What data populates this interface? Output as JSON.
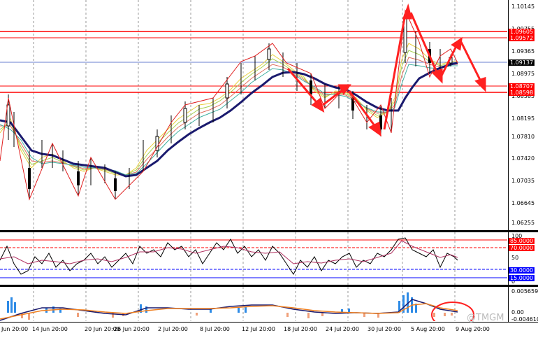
{
  "main_axis": {
    "labels": [
      "1.10145",
      "1.09755",
      "1.09365",
      "1.08975",
      "1.08585",
      "1.08195",
      "1.07810",
      "1.07420",
      "1.07035",
      "1.06645",
      "1.06255"
    ],
    "price_tags": [
      {
        "text": "1.09605",
        "color": "#ff0000",
        "fg": "#ffffff"
      },
      {
        "text": "1.09572",
        "color": "#ff0000",
        "fg": "#ffffff"
      },
      {
        "text": "1.09137",
        "color": "#000000",
        "fg": "#ffffff"
      },
      {
        "text": "1.08707",
        "color": "#ff0000",
        "fg": "#ffffff"
      },
      {
        "text": "1.08598",
        "color": "#ff0000",
        "fg": "#ffffff"
      }
    ]
  },
  "rsi_axis": {
    "labels": [
      "100",
      "50",
      "0"
    ],
    "level_tags": [
      {
        "text": "85.0000",
        "color": "#ff0000",
        "fg": "#ffffff"
      },
      {
        "text": "70.0000",
        "color": "#ff0000",
        "fg": "#ffffff"
      },
      {
        "text": "30.0000",
        "color": "#0000ff",
        "fg": "#ffffff"
      },
      {
        "text": "15.0000",
        "color": "#0000ff",
        "fg": "#ffffff"
      }
    ]
  },
  "macd_axis": {
    "labels": [
      "0.0056595",
      "0.00",
      "-0.004610"
    ]
  },
  "x_axis": {
    "labels": [
      "Jun 20:00",
      "14 Jun 20:00",
      "20 Jun 20:00",
      "26 Jun 20:00",
      "2 Jul 20:00",
      "8 Jul 20:00",
      "12 Jul 20:00",
      "18 Jul 20:00",
      "24 Jul 20:00",
      "30 Jul 20:00",
      "5 Aug 20:00",
      "9 Aug 20:00"
    ]
  },
  "watermark": "@TMGM",
  "colors": {
    "resistance": "#ff0000",
    "ma_slow": "#1a1a6e",
    "arrow": "#ff2020",
    "rsi_line": "#000000",
    "macd_pos": "#2e8be6",
    "macd_neg": "#f0a07a"
  }
}
